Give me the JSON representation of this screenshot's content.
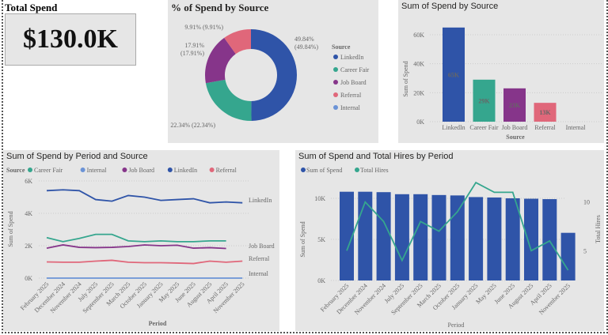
{
  "kpi": {
    "title": "Total Spend",
    "value": "$130.0K"
  },
  "colors": {
    "LinkedIn": "#2f54a8",
    "Career Fair": "#35a68e",
    "Job Board": "#86358a",
    "Referral": "#e0677a",
    "Internal": "#6b93d6"
  },
  "chart_data": [
    {
      "id": "donut",
      "type": "pie",
      "title": "% of Spend by Source",
      "legend_title": "Source",
      "categories": [
        "LinkedIn",
        "Career Fair",
        "Job Board",
        "Referral",
        "Internal"
      ],
      "values": [
        49.84,
        22.34,
        17.91,
        9.91,
        0
      ],
      "labels": [
        "49.84% (49.84%)",
        "22.34% (22.34%)",
        "17.91% (17.91%)",
        "9.91% (9.91%)",
        ""
      ]
    },
    {
      "id": "bar",
      "type": "bar",
      "title": "Sum of Spend by Source",
      "xlabel": "Source",
      "ylabel": "Sum of Spend",
      "categories": [
        "LinkedIn",
        "Career Fair",
        "Job Board",
        "Referral",
        "Internal"
      ],
      "values": [
        65,
        29,
        23,
        13,
        0
      ],
      "data_labels": [
        "65K",
        "29K",
        "23K",
        "13K",
        ""
      ],
      "yticks": [
        "0K",
        "20K",
        "40K",
        "60K"
      ],
      "ylim": [
        0,
        60
      ]
    },
    {
      "id": "line",
      "type": "line",
      "title": "Sum of Spend by Period and Source",
      "xlabel": "Period",
      "ylabel": "Sum of Spend",
      "legend_title": "Source",
      "categories": [
        "February 2025",
        "December 2024",
        "November 2024",
        "July 2025",
        "September 2025",
        "March 2025",
        "October 2025",
        "January 2025",
        "May 2025",
        "June 2025",
        "August 2025",
        "April 2025",
        "November 2025"
      ],
      "yticks": [
        "0K",
        "2K",
        "4K",
        "6K"
      ],
      "ylim": [
        0,
        6
      ],
      "series": [
        {
          "name": "Career Fair",
          "values": [
            2.5,
            2.25,
            2.45,
            2.7,
            2.7,
            2.3,
            2.25,
            2.3,
            2.25,
            2.25,
            2.3,
            2.3,
            null
          ]
        },
        {
          "name": "Internal",
          "values": [
            0,
            0,
            0,
            0,
            0,
            0,
            0,
            0,
            0,
            0,
            0,
            0,
            0
          ]
        },
        {
          "name": "Job Board",
          "values": [
            1.85,
            2.05,
            1.9,
            1.88,
            1.9,
            1.95,
            2.05,
            2.0,
            2.03,
            1.85,
            1.88,
            1.83,
            null
          ]
        },
        {
          "name": "LinkedIn",
          "values": [
            5.4,
            5.45,
            5.4,
            4.85,
            4.75,
            5.1,
            5.0,
            4.8,
            4.85,
            4.9,
            4.65,
            4.7,
            4.65
          ]
        },
        {
          "name": "Referral",
          "values": [
            1.0,
            0.98,
            0.98,
            1.05,
            1.1,
            0.98,
            0.95,
            0.95,
            0.93,
            0.9,
            1.05,
            0.98,
            1.05
          ]
        }
      ]
    },
    {
      "id": "combo",
      "type": "bar",
      "title": "Sum of Spend and Total Hires by Period",
      "xlabel": "Period",
      "ylabel": "Sum of Spend",
      "y2label": "Total Hires",
      "legend": [
        "Sum of Spend",
        "Total Hires"
      ],
      "categories": [
        "February 2025",
        "December 2024",
        "November 2024",
        "July 2025",
        "September 2025",
        "March 2025",
        "October 2025",
        "January 2025",
        "May 2025",
        "June 2025",
        "August 2025",
        "April 2025",
        "November 2025"
      ],
      "spend": [
        10.8,
        10.8,
        10.75,
        10.5,
        10.5,
        10.4,
        10.35,
        10.15,
        10.1,
        10.0,
        9.95,
        9.9,
        5.8
      ],
      "hires": [
        5,
        10,
        8,
        4,
        8,
        7,
        9,
        12,
        11,
        11,
        5,
        6,
        3
      ],
      "yticks": [
        "0K",
        "5K",
        "10K"
      ],
      "ylim": [
        0,
        10
      ],
      "y2ticks": [
        "5",
        "10"
      ],
      "y2lim": [
        1.94,
        10.38
      ]
    }
  ]
}
